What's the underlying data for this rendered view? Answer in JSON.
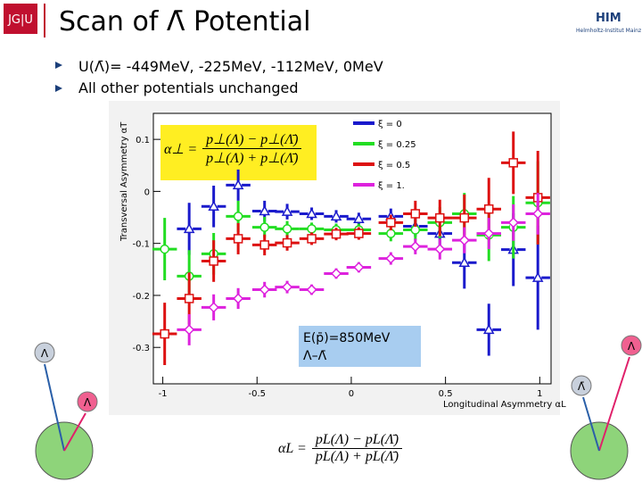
{
  "slide": {
    "title": "Scan of Λ̄ Potential",
    "bullets": [
      "U(Λ̄)= -449MeV, -225MeV, -112MeV, 0MeV",
      "All other potentials unchanged"
    ],
    "logo_left": "JG|U",
    "logo_right": "HIM",
    "logo_right_sub": "Helmholtz-Institut Mainz",
    "formula_t": {
      "lhs": "α⊥ =",
      "num": "p⊥(Λ) − p⊥(Λ̄)",
      "den": "p⊥(Λ) + p⊥(Λ̄)"
    },
    "formula_l": {
      "lhs": "αL =",
      "num": "pL(Λ) − pL(Λ̄)",
      "den": "pL(Λ) + pL(Λ̄)"
    },
    "particles": [
      "Λ",
      "Λ",
      "Λ",
      "Λ̄"
    ]
  },
  "chart_data": {
    "type": "scatter",
    "xlabel": "Longitudinal Asymmetry αL",
    "ylabel": "Transversal Asymmetry αT",
    "xlim": [
      -1.05,
      1.06
    ],
    "ylim": [
      -0.37,
      0.15
    ],
    "xticks": [
      -1,
      -0.5,
      0,
      0.5,
      1
    ],
    "yticks": [
      0.1,
      0,
      -0.1,
      -0.2,
      -0.3
    ],
    "xerr": 0.065,
    "annotation": [
      "E(p̄)=850MeV",
      "Λ–Λ̄"
    ],
    "series": [
      {
        "name": "ξ = 0",
        "color": "#1a1acc",
        "marker": "triangle",
        "x": [
          -0.86,
          -0.73,
          -0.6,
          -0.46,
          -0.34,
          -0.21,
          -0.08,
          0.04,
          0.21,
          0.34,
          0.47,
          0.6,
          0.73,
          0.86,
          0.99
        ],
        "values": [
          -0.072,
          -0.029,
          0.012,
          -0.038,
          -0.039,
          -0.043,
          -0.048,
          -0.053,
          -0.048,
          -0.067,
          -0.081,
          -0.137,
          -0.266,
          -0.112,
          -0.166
        ],
        "yerr": [
          0.05,
          0.04,
          0.03,
          0.02,
          0.015,
          0.012,
          0.012,
          0.012,
          0.015,
          0.02,
          0.03,
          0.05,
          0.05,
          0.07,
          0.1
        ]
      },
      {
        "name": "ξ = 0.25",
        "color": "#22dd22",
        "marker": "circle",
        "x": [
          -0.99,
          -0.86,
          -0.73,
          -0.6,
          -0.46,
          -0.34,
          -0.21,
          -0.08,
          0.04,
          0.21,
          0.34,
          0.47,
          0.6,
          0.73,
          0.86,
          0.99
        ],
        "values": [
          -0.111,
          -0.163,
          -0.12,
          -0.048,
          -0.069,
          -0.072,
          -0.072,
          -0.074,
          -0.074,
          -0.081,
          -0.074,
          -0.06,
          -0.043,
          -0.084,
          -0.069,
          -0.022
        ],
        "yerr": [
          0.06,
          0.05,
          0.04,
          0.03,
          0.02,
          0.015,
          0.012,
          0.012,
          0.012,
          0.015,
          0.02,
          0.03,
          0.04,
          0.05,
          0.06,
          0.08
        ]
      },
      {
        "name": "ξ = 0.5",
        "color": "#dd1111",
        "marker": "square",
        "x": [
          -0.99,
          -0.86,
          -0.73,
          -0.6,
          -0.46,
          -0.34,
          -0.21,
          -0.08,
          0.04,
          0.21,
          0.34,
          0.47,
          0.6,
          0.73,
          0.86,
          0.99
        ],
        "values": [
          -0.274,
          -0.206,
          -0.134,
          -0.091,
          -0.103,
          -0.099,
          -0.091,
          -0.082,
          -0.081,
          -0.06,
          -0.043,
          -0.051,
          -0.051,
          -0.034,
          0.055,
          -0.012
        ],
        "yerr": [
          0.06,
          0.05,
          0.04,
          0.03,
          0.02,
          0.015,
          0.012,
          0.012,
          0.012,
          0.015,
          0.025,
          0.035,
          0.045,
          0.06,
          0.06,
          0.09
        ]
      },
      {
        "name": "ξ = 1.",
        "color": "#dd22dd",
        "marker": "diamond",
        "x": [
          -0.86,
          -0.73,
          -0.6,
          -0.46,
          -0.34,
          -0.21,
          -0.08,
          0.04,
          0.21,
          0.34,
          0.47,
          0.6,
          0.73,
          0.86,
          0.99
        ],
        "values": [
          -0.266,
          -0.223,
          -0.206,
          -0.189,
          -0.184,
          -0.189,
          -0.158,
          -0.146,
          -0.129,
          -0.106,
          -0.111,
          -0.094,
          -0.081,
          -0.06,
          -0.043
        ],
        "yerr": [
          0.03,
          0.025,
          0.02,
          0.015,
          0.012,
          0.01,
          0.01,
          0.01,
          0.012,
          0.015,
          0.02,
          0.025,
          0.03,
          0.035,
          0.04
        ]
      }
    ]
  }
}
